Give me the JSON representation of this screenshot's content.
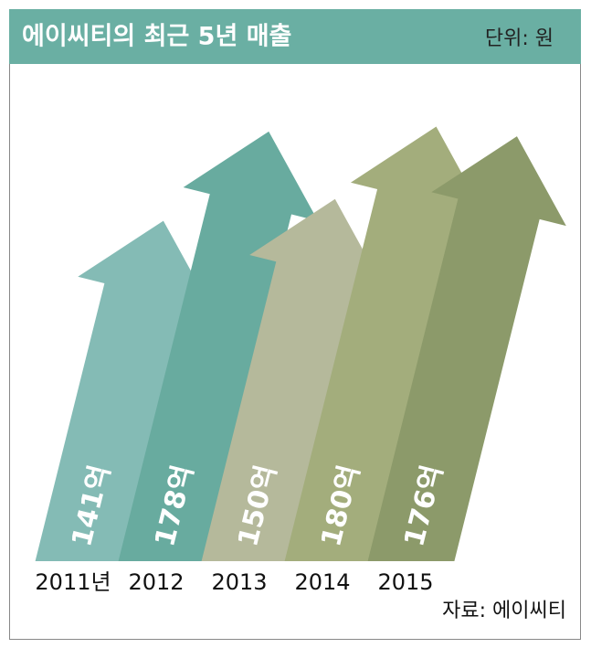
{
  "chart_data": {
    "type": "arrow_bar",
    "title": "에이씨티의 최근 5년 매출",
    "unit_note": "단위: 원",
    "source": "자료: 에이씨티",
    "categories": [
      "2011년",
      "2012",
      "2013",
      "2014",
      "2015"
    ],
    "values": [
      141,
      178,
      150,
      180,
      176
    ],
    "value_labels": [
      "141억",
      "178억",
      "150억",
      "180억",
      "176억"
    ],
    "colors": [
      "#84bbb5",
      "#68ab9f",
      "#b5b99b",
      "#a3ad7c",
      "#8c9a6a"
    ]
  }
}
